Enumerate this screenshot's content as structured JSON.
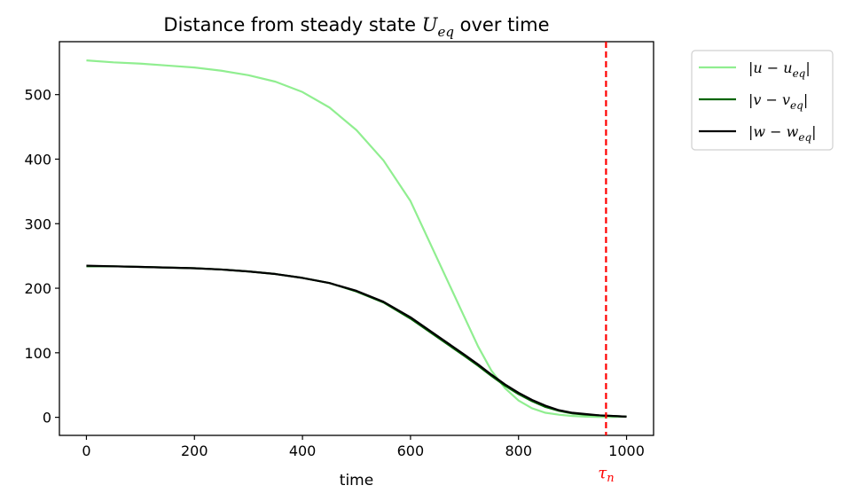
{
  "chart_data": {
    "type": "line",
    "title": "Distance from steady state U_eq over time",
    "title_parts": {
      "prefix": "Distance from steady state ",
      "var": "U",
      "sub": "eq",
      "suffix": " over time"
    },
    "xlabel": "time",
    "ylabel": "",
    "xlim": [
      -50,
      1050
    ],
    "ylim": [
      -28,
      582
    ],
    "xticks": [
      0,
      200,
      400,
      600,
      800,
      1000
    ],
    "yticks": [
      0,
      100,
      200,
      300,
      400,
      500
    ],
    "grid": false,
    "legend_position": "outside-top-right",
    "series": [
      {
        "name": "|u − u_eq|",
        "label_var": "u",
        "color": "#90ee90",
        "x": [
          0,
          50,
          100,
          150,
          200,
          250,
          300,
          350,
          400,
          450,
          500,
          550,
          600,
          650,
          700,
          725,
          750,
          775,
          800,
          825,
          850,
          875,
          900,
          925,
          950,
          975,
          1000
        ],
        "y": [
          553,
          550,
          548,
          545,
          542,
          537,
          530,
          520,
          504,
          480,
          445,
          398,
          335,
          245,
          155,
          110,
          72,
          45,
          26,
          14,
          7,
          4,
          2,
          1,
          0.5,
          0.5,
          1
        ]
      },
      {
        "name": "|v − v_eq|",
        "label_var": "v",
        "color": "#006400",
        "x": [
          0,
          50,
          100,
          150,
          200,
          250,
          300,
          350,
          400,
          450,
          500,
          550,
          600,
          650,
          700,
          725,
          750,
          775,
          800,
          825,
          850,
          875,
          900,
          925,
          950,
          975,
          1000
        ],
        "y": [
          234,
          234,
          233,
          232,
          231,
          229,
          226,
          222,
          216,
          208,
          195,
          178,
          153,
          124,
          95,
          80,
          64,
          49,
          36,
          25,
          16,
          10,
          6,
          4,
          3,
          2,
          1
        ]
      },
      {
        "name": "|w − w_eq|",
        "label_var": "w",
        "color": "#000000",
        "x": [
          0,
          50,
          100,
          150,
          200,
          250,
          300,
          350,
          400,
          450,
          500,
          550,
          600,
          650,
          700,
          725,
          750,
          775,
          800,
          825,
          850,
          875,
          900,
          925,
          950,
          975,
          1000
        ],
        "y": [
          235,
          234,
          233,
          232,
          231,
          229,
          226,
          222,
          216,
          208,
          196,
          179,
          155,
          126,
          97,
          82,
          66,
          51,
          38,
          27,
          18,
          11,
          7,
          5,
          3,
          2,
          1
        ]
      }
    ],
    "annotations": [
      {
        "type": "vline",
        "x": 962,
        "color": "#ff0000",
        "style": "dashed",
        "label": "τ_n",
        "label_var": "τ",
        "label_sub": "n"
      }
    ]
  }
}
